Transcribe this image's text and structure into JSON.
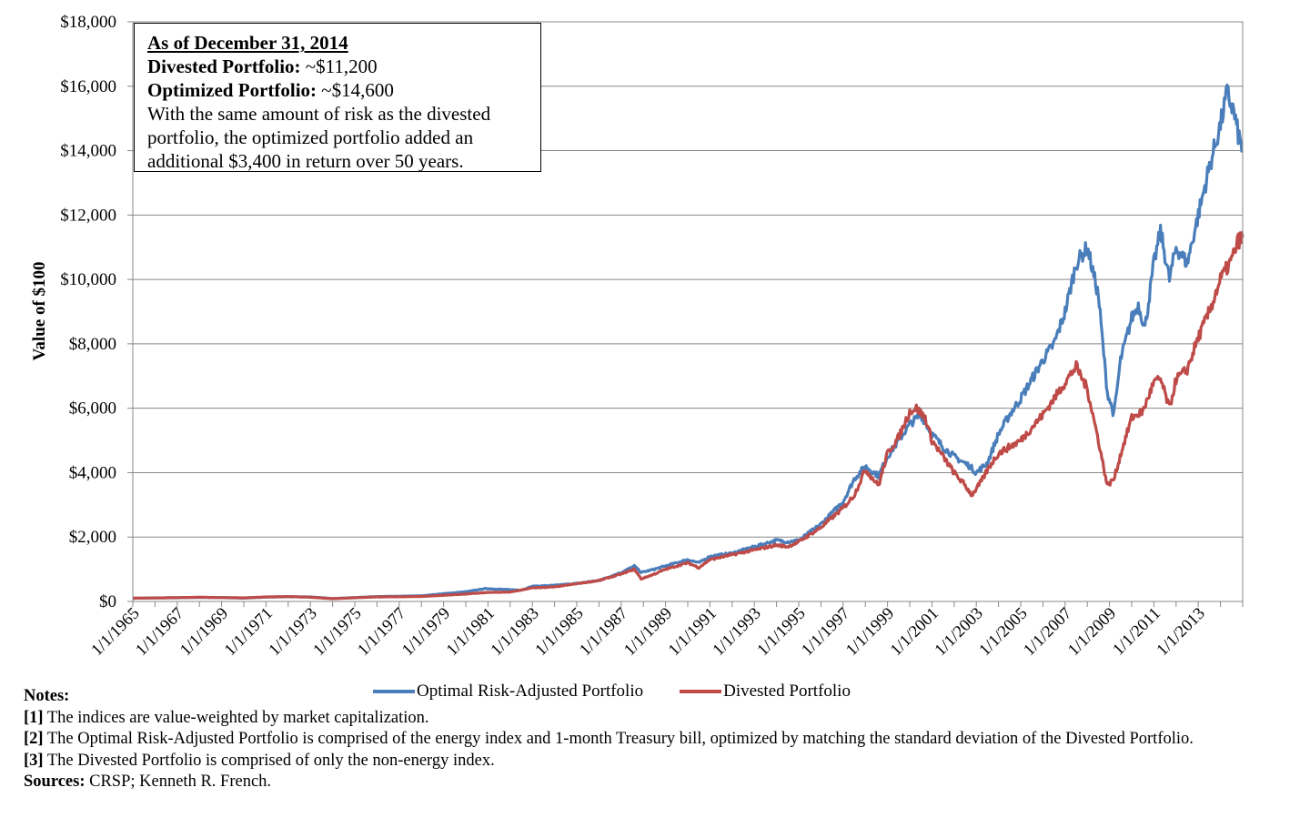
{
  "chart_data": {
    "type": "line",
    "title": "",
    "xlabel": "",
    "ylabel": "Value of $100",
    "ylim": [
      0,
      18000
    ],
    "yticks": [
      0,
      2000,
      4000,
      6000,
      8000,
      10000,
      12000,
      14000,
      16000,
      18000
    ],
    "ytick_labels": [
      "$0",
      "$2,000",
      "$4,000",
      "$6,000",
      "$8,000",
      "$10,000",
      "$12,000",
      "$14,000",
      "$16,000",
      "$18,000"
    ],
    "xlim": [
      1965,
      2015
    ],
    "xtick_labels": [
      "1/1/1965",
      "1/1/1967",
      "1/1/1969",
      "1/1/1971",
      "1/1/1973",
      "1/1/1975",
      "1/1/1977",
      "1/1/1979",
      "1/1/1981",
      "1/1/1983",
      "1/1/1985",
      "1/1/1987",
      "1/1/1989",
      "1/1/1991",
      "1/1/1993",
      "1/1/1995",
      "1/1/1997",
      "1/1/1999",
      "1/1/2001",
      "1/1/2003",
      "1/1/2005",
      "1/1/2007",
      "1/1/2009",
      "1/1/2011",
      "1/1/2013"
    ],
    "grid": true,
    "legend_position": "bottom",
    "series": [
      {
        "name": "Optimal Risk-Adjusted Portfolio",
        "color": "#4a7ebb",
        "x": [
          1965,
          1966,
          1967,
          1968,
          1969,
          1970,
          1971,
          1972,
          1973,
          1974,
          1975,
          1976,
          1977,
          1978,
          1979,
          1980,
          1980.9,
          1981.5,
          1982.5,
          1983,
          1984,
          1985,
          1986,
          1987,
          1987.6,
          1987.9,
          1988.5,
          1989,
          1990,
          1990.5,
          1991,
          1992,
          1993,
          1994,
          1994.5,
          1995,
          1996,
          1997,
          1997.5,
          1998,
          1998.6,
          1999,
          1999.5,
          2000,
          2000.5,
          2001,
          2001.5,
          2002,
          2002.7,
          2003,
          2003.5,
          2004,
          2004.5,
          2005,
          2006,
          2006.5,
          2007,
          2007.5,
          2008,
          2008.5,
          2008.9,
          2009.2,
          2009.5,
          2010,
          2010.3,
          2010.6,
          2011,
          2011.3,
          2011.7,
          2012,
          2012.5,
          2013,
          2013.5,
          2014,
          2014.3,
          2014.6,
          2014.8,
          2015
        ],
        "values": [
          100,
          110,
          115,
          125,
          120,
          105,
          135,
          145,
          140,
          90,
          120,
          150,
          160,
          175,
          240,
          300,
          400,
          380,
          350,
          470,
          500,
          560,
          650,
          900,
          1100,
          900,
          1000,
          1100,
          1300,
          1200,
          1400,
          1500,
          1700,
          1900,
          1850,
          1900,
          2400,
          3100,
          3800,
          4200,
          3900,
          4500,
          5000,
          5500,
          5800,
          5200,
          4800,
          4500,
          4200,
          4000,
          4300,
          5200,
          5800,
          6300,
          7500,
          8000,
          9000,
          10500,
          11000,
          9500,
          6500,
          5800,
          7500,
          8800,
          9200,
          8500,
          10500,
          11500,
          10000,
          11000,
          10500,
          12000,
          13500,
          14800,
          15800,
          15200,
          14500,
          14000
        ]
      },
      {
        "name": "Divested Portfolio",
        "color": "#be4b48",
        "x": [
          1965,
          1966,
          1967,
          1968,
          1969,
          1970,
          1971,
          1972,
          1973,
          1974,
          1975,
          1976,
          1977,
          1978,
          1979,
          1980,
          1981,
          1982,
          1983,
          1984,
          1985,
          1986,
          1987,
          1987.6,
          1987.9,
          1988.5,
          1989,
          1990,
          1990.5,
          1991,
          1992,
          1993,
          1994,
          1994.5,
          1995,
          1996,
          1997,
          1997.5,
          1998,
          1998.6,
          1999,
          1999.5,
          2000,
          2000.3,
          2000.7,
          2001,
          2001.5,
          2002,
          2002.5,
          2002.8,
          2003.2,
          2003.6,
          2004,
          2005,
          2006,
          2007,
          2007.5,
          2008,
          2008.5,
          2008.9,
          2009.2,
          2009.6,
          2010,
          2010.5,
          2011,
          2011.3,
          2011.7,
          2012,
          2012.5,
          2013,
          2013.5,
          2014,
          2014.5,
          2014.8,
          2015
        ],
        "values": [
          100,
          108,
          118,
          130,
          120,
          110,
          140,
          150,
          130,
          85,
          115,
          140,
          145,
          155,
          190,
          230,
          280,
          290,
          420,
          450,
          550,
          650,
          850,
          1000,
          700,
          850,
          1000,
          1200,
          1050,
          1300,
          1450,
          1600,
          1750,
          1700,
          1850,
          2300,
          2900,
          3300,
          4100,
          3600,
          4600,
          5100,
          5900,
          6000,
          5700,
          5000,
          4500,
          4000,
          3600,
          3300,
          3700,
          4200,
          4600,
          5000,
          5800,
          6800,
          7300,
          6600,
          5000,
          3600,
          3800,
          4800,
          5700,
          5900,
          6800,
          6900,
          6000,
          6900,
          7200,
          8200,
          9000,
          10000,
          10600,
          11200,
          11300
        ]
      }
    ]
  },
  "annotation": {
    "heading": "As of December 31, 2014",
    "line1_label": "Divested Portfolio:",
    "line1_value": " ~$11,200",
    "line2_label": "Optimized Portfolio:",
    "line2_value": " ~$14,600",
    "body": "With the same amount of risk as the divested portfolio, the optimized portfolio added an additional $3,400 in return over 50 years."
  },
  "notes": {
    "title": "Notes:",
    "items": [
      {
        "marker": "[1]",
        "text": " The indices are value-weighted by market capitalization."
      },
      {
        "marker": "[2]",
        "text": " The Optimal Risk-Adjusted Portfolio is comprised of the energy index and 1-month Treasury bill, optimized by matching the standard deviation of the Divested Portfolio."
      },
      {
        "marker": "[3]",
        "text": " The Divested Portfolio is comprised of only the non-energy index."
      }
    ],
    "sources_label": "Sources:",
    "sources_text": " CRSP; Kenneth R. French."
  }
}
